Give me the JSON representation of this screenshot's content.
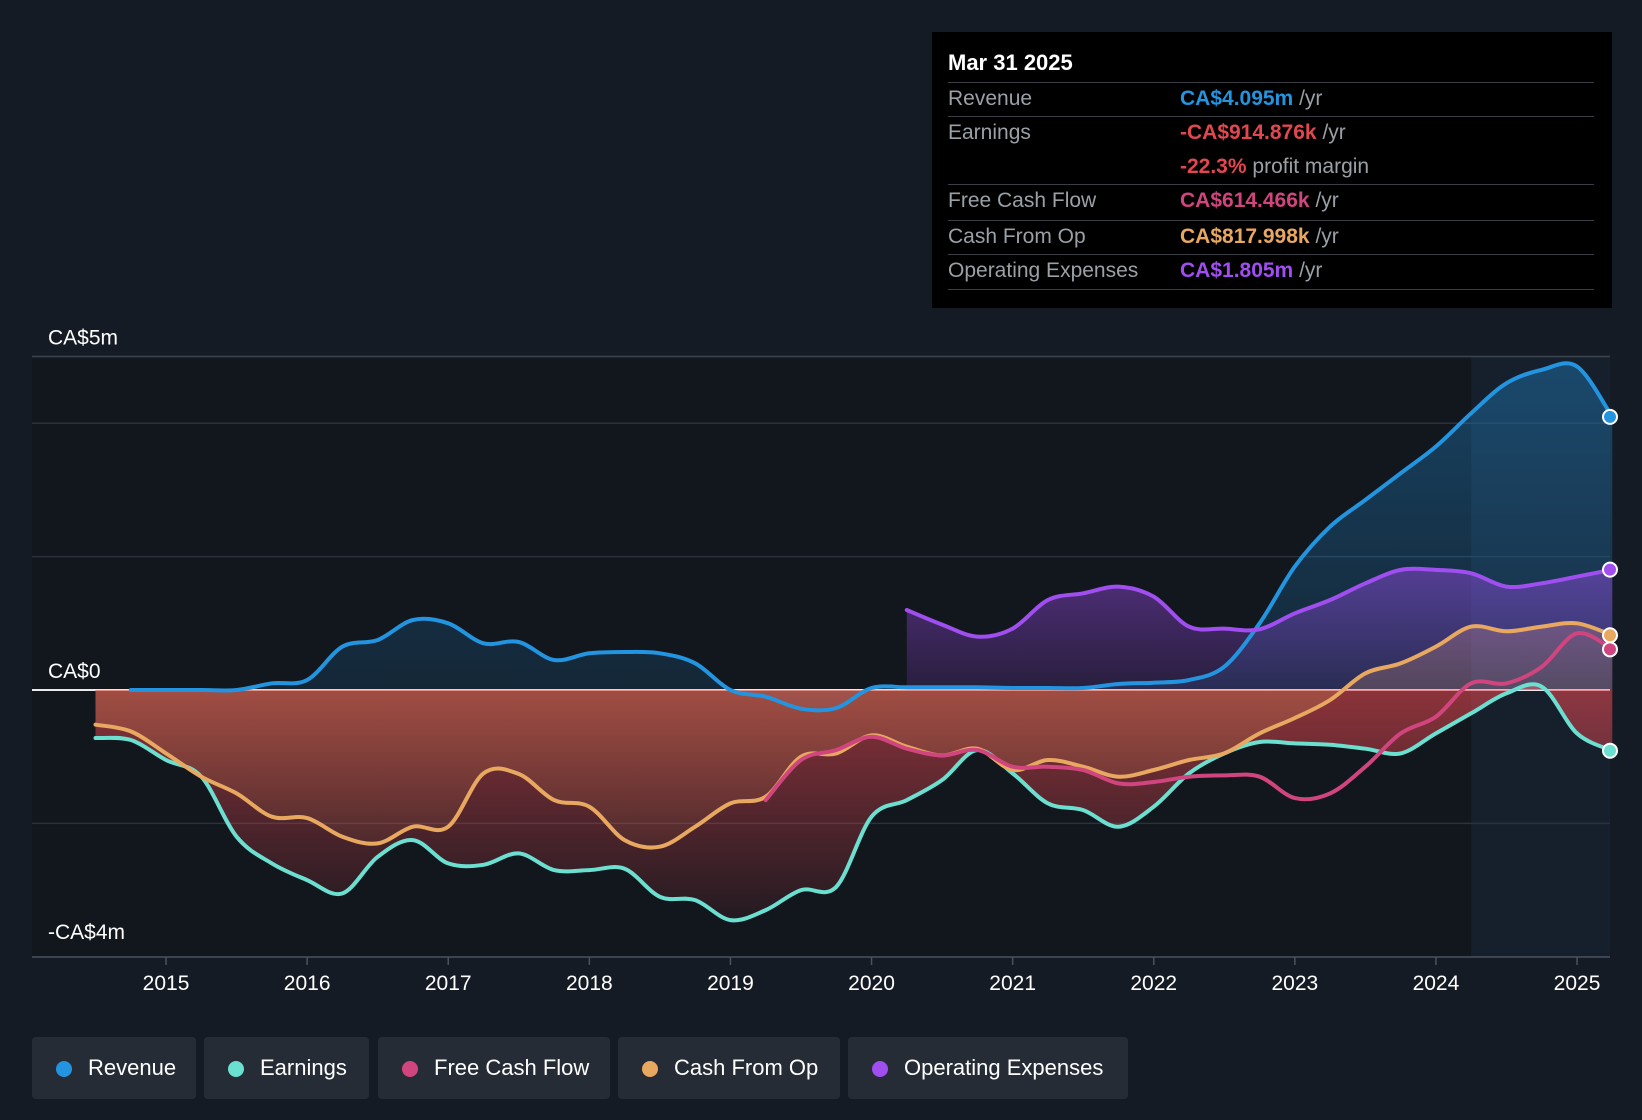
{
  "colors": {
    "revenue": "#2394df",
    "earnings": "#6bdfd0",
    "fcf": "#d0457e",
    "cfo": "#e8a860",
    "opex": "#a04ef0",
    "negative": "#e2474f"
  },
  "tooltip": {
    "date": "Mar 31 2025",
    "revenue_label": "Revenue",
    "revenue_value": "CA$4.095m",
    "revenue_unit": "/yr",
    "earnings_label": "Earnings",
    "earnings_value": "-CA$914.876k",
    "earnings_unit": "/yr",
    "margin_value": "-22.3%",
    "margin_unit": "profit margin",
    "fcf_label": "Free Cash Flow",
    "fcf_value": "CA$614.466k",
    "fcf_unit": "/yr",
    "cfo_label": "Cash From Op",
    "cfo_value": "CA$817.998k",
    "cfo_unit": "/yr",
    "opex_label": "Operating Expenses",
    "opex_value": "CA$1.805m",
    "opex_unit": "/yr"
  },
  "legend": {
    "revenue": "Revenue",
    "earnings": "Earnings",
    "fcf": "Free Cash Flow",
    "cfo": "Cash From Op",
    "opex": "Operating Expenses"
  },
  "chart_data": {
    "type": "line",
    "title": "",
    "xlabel": "",
    "ylabel": "",
    "ylim": [
      -4,
      5
    ],
    "xlim": [
      2014.05,
      2025.25
    ],
    "y_tick_labels": [
      {
        "value": 5,
        "label": "CA$5m"
      },
      {
        "value": 0,
        "label": "CA$0"
      },
      {
        "value": -4,
        "label": "-CA$4m"
      }
    ],
    "x_ticks": [
      2015,
      2016,
      2017,
      2018,
      2019,
      2020,
      2021,
      2022,
      2023,
      2024,
      2025
    ],
    "x_tick_labels": [
      "2015",
      "2016",
      "2017",
      "2018",
      "2019",
      "2020",
      "2021",
      "2022",
      "2023",
      "2024",
      "2025"
    ],
    "forecast_shade_start": 2024.25,
    "series": [
      {
        "name": "Revenue",
        "key": "revenue",
        "x": [
          2014.75,
          2015.0,
          2015.25,
          2015.5,
          2015.75,
          2016.0,
          2016.25,
          2016.5,
          2016.75,
          2017.0,
          2017.25,
          2017.5,
          2017.75,
          2018.0,
          2018.25,
          2018.5,
          2018.75,
          2019.0,
          2019.25,
          2019.5,
          2019.75,
          2020.0,
          2020.25,
          2020.5,
          2020.75,
          2021.0,
          2021.25,
          2021.5,
          2021.75,
          2022.0,
          2022.25,
          2022.5,
          2022.75,
          2023.0,
          2023.25,
          2023.5,
          2023.75,
          2024.0,
          2024.25,
          2024.5,
          2024.75,
          2025.0,
          2025.25
        ],
        "values": [
          0.0,
          0.0,
          0.0,
          0.0,
          0.1,
          0.15,
          0.65,
          0.75,
          1.05,
          1.0,
          0.7,
          0.72,
          0.45,
          0.55,
          0.57,
          0.55,
          0.4,
          0.0,
          -0.1,
          -0.28,
          -0.27,
          0.03,
          0.04,
          0.04,
          0.04,
          0.03,
          0.03,
          0.03,
          0.09,
          0.11,
          0.15,
          0.35,
          1.0,
          1.85,
          2.45,
          2.85,
          3.25,
          3.65,
          4.15,
          4.6,
          4.8,
          4.85,
          4.095
        ]
      },
      {
        "name": "Earnings",
        "key": "earnings",
        "x": [
          2014.5,
          2014.75,
          2015.0,
          2015.25,
          2015.5,
          2015.75,
          2016.0,
          2016.25,
          2016.5,
          2016.75,
          2017.0,
          2017.25,
          2017.5,
          2017.75,
          2018.0,
          2018.25,
          2018.5,
          2018.75,
          2019.0,
          2019.25,
          2019.5,
          2019.75,
          2020.0,
          2020.25,
          2020.5,
          2020.75,
          2021.0,
          2021.25,
          2021.5,
          2021.75,
          2022.0,
          2022.25,
          2022.5,
          2022.75,
          2023.0,
          2023.25,
          2023.5,
          2023.75,
          2024.0,
          2024.25,
          2024.5,
          2024.75,
          2025.0,
          2025.25
        ],
        "values": [
          -0.72,
          -0.75,
          -1.05,
          -1.3,
          -2.2,
          -2.6,
          -2.85,
          -3.05,
          -2.5,
          -2.25,
          -2.6,
          -2.62,
          -2.45,
          -2.7,
          -2.7,
          -2.68,
          -3.1,
          -3.15,
          -3.45,
          -3.3,
          -3.0,
          -2.95,
          -1.9,
          -1.65,
          -1.35,
          -0.9,
          -1.25,
          -1.7,
          -1.8,
          -2.05,
          -1.75,
          -1.25,
          -0.95,
          -0.78,
          -0.8,
          -0.82,
          -0.88,
          -0.95,
          -0.65,
          -0.35,
          -0.05,
          0.05,
          -0.65,
          -0.91
        ]
      },
      {
        "name": "Free Cash Flow",
        "key": "fcf",
        "x": [
          2019.25,
          2019.5,
          2019.75,
          2020.0,
          2020.25,
          2020.5,
          2020.75,
          2021.0,
          2021.25,
          2021.5,
          2021.75,
          2022.0,
          2022.25,
          2022.5,
          2022.75,
          2023.0,
          2023.25,
          2023.5,
          2023.75,
          2024.0,
          2024.25,
          2024.5,
          2024.75,
          2025.0,
          2025.25
        ],
        "values": [
          -1.65,
          -1.05,
          -0.9,
          -0.7,
          -0.88,
          -0.98,
          -0.9,
          -1.15,
          -1.15,
          -1.2,
          -1.4,
          -1.38,
          -1.3,
          -1.28,
          -1.3,
          -1.62,
          -1.55,
          -1.15,
          -0.65,
          -0.4,
          0.1,
          0.1,
          0.35,
          0.85,
          0.61
        ]
      },
      {
        "name": "Cash From Op",
        "key": "cfo",
        "x": [
          2014.5,
          2014.75,
          2015.0,
          2015.25,
          2015.5,
          2015.75,
          2016.0,
          2016.25,
          2016.5,
          2016.75,
          2017.0,
          2017.25,
          2017.5,
          2017.75,
          2018.0,
          2018.25,
          2018.5,
          2018.75,
          2019.0,
          2019.25,
          2019.5,
          2019.75,
          2020.0,
          2020.25,
          2020.5,
          2020.75,
          2021.0,
          2021.25,
          2021.5,
          2021.75,
          2022.0,
          2022.25,
          2022.5,
          2022.75,
          2023.0,
          2023.25,
          2023.5,
          2023.75,
          2024.0,
          2024.25,
          2024.5,
          2024.75,
          2025.0,
          2025.25
        ],
        "values": [
          -0.52,
          -0.62,
          -0.95,
          -1.3,
          -1.55,
          -1.9,
          -1.92,
          -2.2,
          -2.3,
          -2.05,
          -2.05,
          -1.25,
          -1.26,
          -1.65,
          -1.75,
          -2.25,
          -2.35,
          -2.05,
          -1.7,
          -1.6,
          -1.0,
          -0.95,
          -0.68,
          -0.85,
          -0.98,
          -0.88,
          -1.2,
          -1.05,
          -1.15,
          -1.3,
          -1.2,
          -1.05,
          -0.95,
          -0.65,
          -0.42,
          -0.15,
          0.25,
          0.4,
          0.65,
          0.95,
          0.88,
          0.95,
          1.0,
          0.82
        ]
      },
      {
        "name": "Operating Expenses",
        "key": "opex",
        "x": [
          2020.25,
          2020.5,
          2020.75,
          2021.0,
          2021.25,
          2021.5,
          2021.75,
          2022.0,
          2022.25,
          2022.5,
          2022.75,
          2023.0,
          2023.25,
          2023.5,
          2023.75,
          2024.0,
          2024.25,
          2024.5,
          2024.75,
          2025.0,
          2025.25
        ],
        "values": [
          1.2,
          0.98,
          0.8,
          0.92,
          1.35,
          1.45,
          1.55,
          1.4,
          0.95,
          0.92,
          0.91,
          1.15,
          1.35,
          1.6,
          1.8,
          1.8,
          1.75,
          1.55,
          1.6,
          1.7,
          1.805
        ]
      }
    ]
  }
}
